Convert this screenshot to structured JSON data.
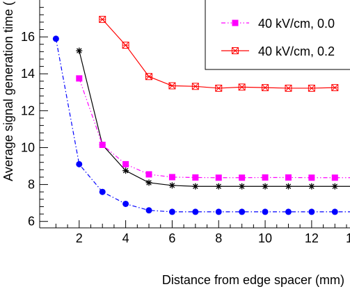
{
  "chart_data": {
    "type": "line",
    "xlabel": "Distance from edge spacer (mm)",
    "ylabel": "Average signal generation time (",
    "xlim": [
      0.3,
      13.65
    ],
    "ylim": [
      5.65,
      18.0
    ],
    "x_ticks": [
      2,
      4,
      6,
      8,
      10,
      12
    ],
    "x_tick_labels": [
      "2",
      "4",
      "6",
      "8",
      "10",
      "12"
    ],
    "x_edge_label": "1",
    "y_ticks": [
      6,
      8,
      10,
      12,
      14,
      16
    ],
    "y_tick_labels": [
      "6",
      "8",
      "10",
      "12",
      "14",
      "16"
    ],
    "grid": false,
    "legend_position": "top-right",
    "series": [
      {
        "name": "",
        "color": "#0000ff",
        "marker": "circle",
        "line_style": "dash-dot",
        "x": [
          1,
          2,
          3,
          4,
          5,
          6,
          7,
          8,
          9,
          10,
          11,
          12,
          13,
          14
        ],
        "values": [
          15.9,
          9.1,
          7.6,
          6.95,
          6.6,
          6.52,
          6.52,
          6.52,
          6.52,
          6.52,
          6.52,
          6.52,
          6.52,
          6.52
        ]
      },
      {
        "name": "",
        "color": "#000000",
        "marker": "star",
        "line_style": "solid",
        "x": [
          2,
          3,
          4,
          5,
          6,
          7,
          8,
          9,
          10,
          11,
          12,
          13,
          14
        ],
        "values": [
          15.25,
          10.15,
          8.75,
          8.1,
          7.95,
          7.9,
          7.9,
          7.9,
          7.9,
          7.9,
          7.9,
          7.9,
          7.9
        ]
      },
      {
        "name": "40 kV/cm, 0.0",
        "color": "#ff00ff",
        "marker": "square",
        "line_style": "dash-dot-dot",
        "x": [
          2,
          3,
          4,
          5,
          6,
          7,
          8,
          9,
          10,
          11,
          12,
          13,
          14
        ],
        "values": [
          13.75,
          10.15,
          9.1,
          8.55,
          8.4,
          8.38,
          8.37,
          8.37,
          8.38,
          8.38,
          8.37,
          8.37,
          8.37
        ]
      },
      {
        "name": "40 kV/cm, 0.2",
        "color": "#ff0000",
        "marker": "open-square-star",
        "line_style": "solid",
        "x": [
          3,
          4,
          5,
          6,
          7,
          8,
          9,
          10,
          11,
          12,
          13
        ],
        "values": [
          16.95,
          15.55,
          13.85,
          13.35,
          13.32,
          13.22,
          13.28,
          13.25,
          13.22,
          13.22,
          13.25
        ]
      }
    ]
  }
}
